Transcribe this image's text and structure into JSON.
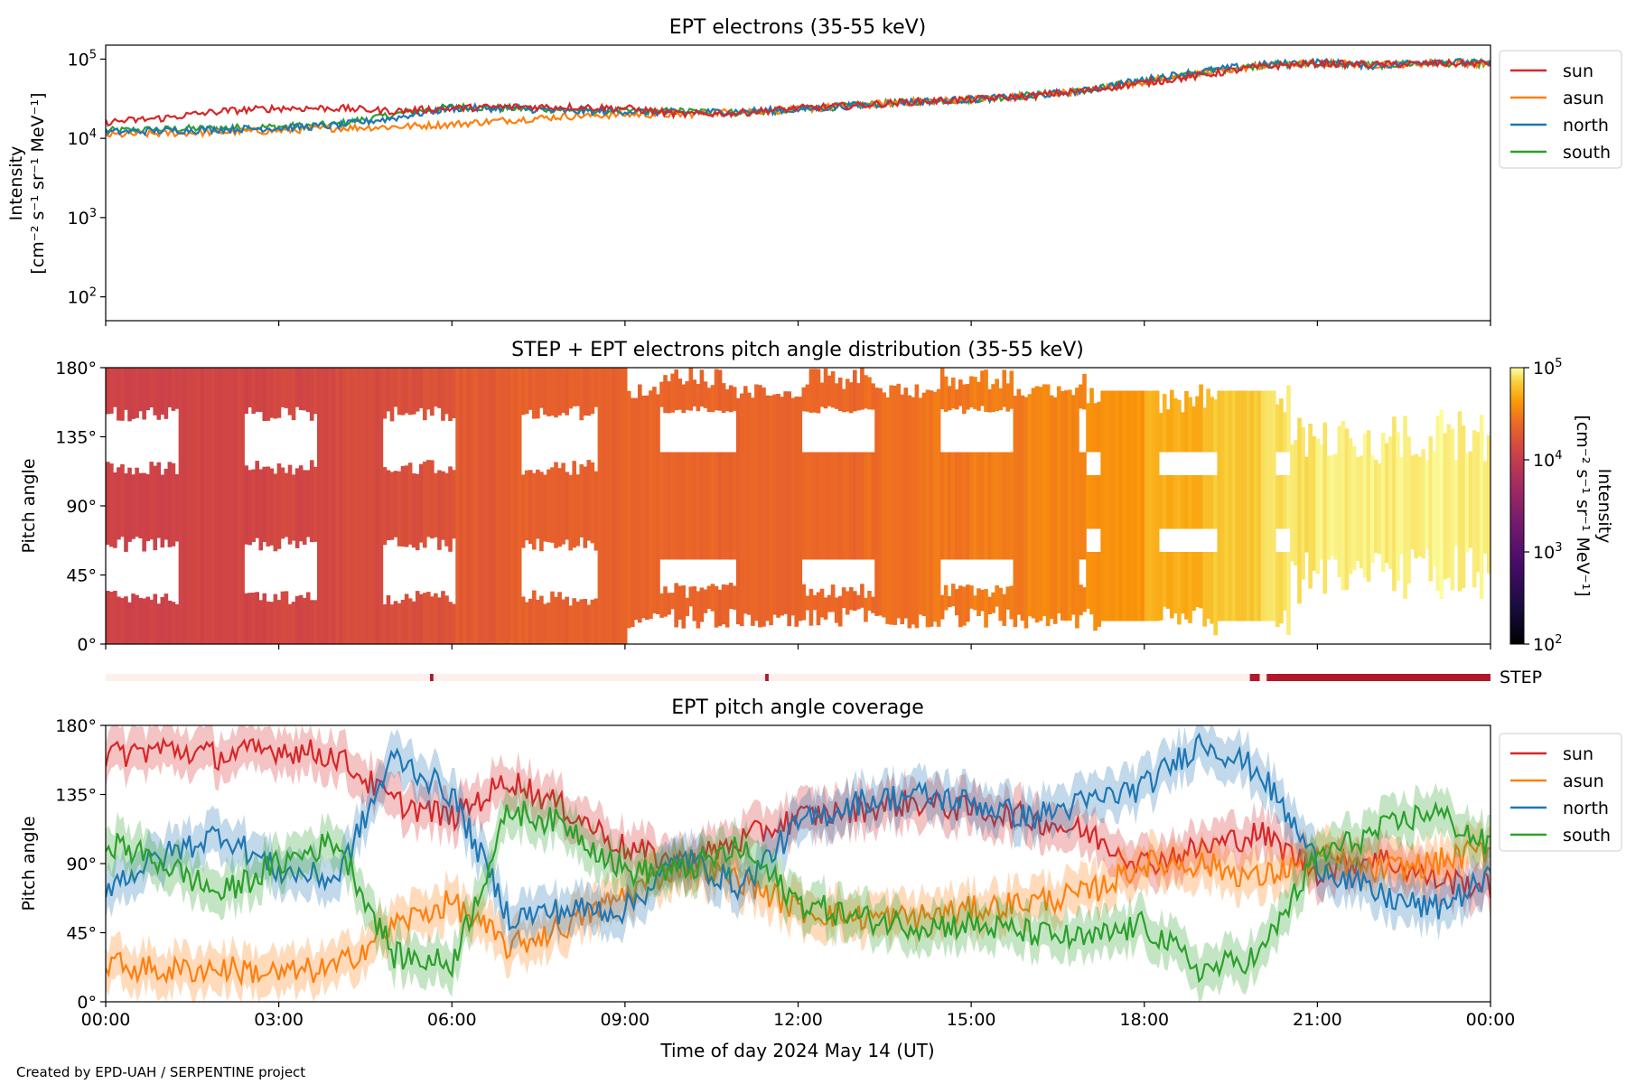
{
  "chart_data": [
    {
      "type": "line",
      "title": "EPT electrons (35-55 keV)",
      "ylabel": "Intensity",
      "ylabel_unit": "[cm⁻² s⁻¹ sr⁻¹ MeV⁻¹]",
      "yscale": "log",
      "ylim": [
        50,
        150000
      ],
      "yticks": [
        100,
        1000,
        10000,
        100000
      ],
      "ytick_labels": [
        [
          "10",
          "2"
        ],
        [
          "10",
          "3"
        ],
        [
          "10",
          "4"
        ],
        [
          "10",
          "5"
        ]
      ],
      "xlim_hours": [
        0,
        24
      ],
      "legend": "outside-right",
      "series": [
        {
          "name": "sun",
          "color": "#d62728",
          "values": [
            [
              0,
              16000
            ],
            [
              1,
              18000
            ],
            [
              2,
              22000
            ],
            [
              3,
              24000
            ],
            [
              4,
              24000
            ],
            [
              5,
              22000
            ],
            [
              6,
              24000
            ],
            [
              7,
              25000
            ],
            [
              8,
              25000
            ],
            [
              9,
              24000
            ],
            [
              10,
              20000
            ],
            [
              11,
              21000
            ],
            [
              12,
              24000
            ],
            [
              13,
              26000
            ],
            [
              14,
              29000
            ],
            [
              15,
              31000
            ],
            [
              16,
              34000
            ],
            [
              17,
              40000
            ],
            [
              18,
              50000
            ],
            [
              19,
              62000
            ],
            [
              20,
              80000
            ],
            [
              21,
              88000
            ],
            [
              22,
              85000
            ],
            [
              23,
              88000
            ],
            [
              24,
              88000
            ]
          ]
        },
        {
          "name": "asun",
          "color": "#ff7f0e",
          "values": [
            [
              0,
              11000
            ],
            [
              1,
              11500
            ],
            [
              2,
              12000
            ],
            [
              3,
              12500
            ],
            [
              4,
              13500
            ],
            [
              5,
              14000
            ],
            [
              6,
              15000
            ],
            [
              7,
              17000
            ],
            [
              8,
              19000
            ],
            [
              9,
              20000
            ],
            [
              10,
              20000
            ],
            [
              11,
              22000
            ],
            [
              12,
              23000
            ],
            [
              13,
              26000
            ],
            [
              14,
              29000
            ],
            [
              15,
              31000
            ],
            [
              16,
              34000
            ],
            [
              17,
              40000
            ],
            [
              18,
              52000
            ],
            [
              19,
              65000
            ],
            [
              20,
              82000
            ],
            [
              21,
              90000
            ],
            [
              22,
              85000
            ],
            [
              23,
              88000
            ],
            [
              24,
              88000
            ]
          ]
        },
        {
          "name": "north",
          "color": "#1f77b4",
          "values": [
            [
              0,
              12000
            ],
            [
              1,
              12500
            ],
            [
              2,
              13000
            ],
            [
              3,
              13500
            ],
            [
              4,
              14500
            ],
            [
              5,
              18000
            ],
            [
              6,
              24000
            ],
            [
              7,
              24000
            ],
            [
              8,
              22000
            ],
            [
              9,
              22000
            ],
            [
              10,
              21000
            ],
            [
              11,
              22000
            ],
            [
              12,
              23000
            ],
            [
              13,
              26000
            ],
            [
              14,
              29000
            ],
            [
              15,
              31000
            ],
            [
              16,
              34000
            ],
            [
              17,
              40000
            ],
            [
              18,
              55000
            ],
            [
              19,
              70000
            ],
            [
              20,
              85000
            ],
            [
              21,
              92000
            ],
            [
              22,
              82000
            ],
            [
              23,
              95000
            ],
            [
              24,
              88000
            ]
          ]
        },
        {
          "name": "south",
          "color": "#2ca02c",
          "values": [
            [
              0,
              12500
            ],
            [
              1,
              13000
            ],
            [
              2,
              13500
            ],
            [
              3,
              14000
            ],
            [
              4,
              15000
            ],
            [
              5,
              20000
            ],
            [
              6,
              25000
            ],
            [
              7,
              24000
            ],
            [
              8,
              23000
            ],
            [
              9,
              22000
            ],
            [
              10,
              22000
            ],
            [
              11,
              21000
            ],
            [
              12,
              23000
            ],
            [
              13,
              26000
            ],
            [
              14,
              29000
            ],
            [
              15,
              31000
            ],
            [
              16,
              35000
            ],
            [
              17,
              40000
            ],
            [
              18,
              53000
            ],
            [
              19,
              68000
            ],
            [
              20,
              84000
            ],
            [
              21,
              88000
            ],
            [
              22,
              84000
            ],
            [
              23,
              90000
            ],
            [
              24,
              88000
            ]
          ]
        }
      ]
    },
    {
      "type": "heatmap",
      "title": "STEP + EPT electrons pitch angle distribution (35-55 keV)",
      "ylabel": "Pitch angle",
      "ylim_deg": [
        0,
        180
      ],
      "yticks_deg": [
        0,
        45,
        90,
        135,
        180
      ],
      "ytick_labels": [
        "0°",
        "45°",
        "90°",
        "135°",
        "180°"
      ],
      "xlim_hours": [
        0,
        24
      ],
      "colorbar": {
        "label": "Intensity",
        "unit": "[cm⁻² s⁻¹ sr⁻¹ MeV⁻¹]",
        "scale": "log",
        "range": [
          100,
          100000
        ],
        "ticks": [
          [
            "10",
            "2"
          ],
          [
            "10",
            "3"
          ],
          [
            "10",
            "4"
          ],
          [
            "10",
            "5"
          ]
        ],
        "colormap": "inferno"
      },
      "intensity_by_hour": [
        12000,
        12500,
        13000,
        13500,
        14500,
        16000,
        19000,
        21000,
        22000,
        23000,
        23000,
        23000,
        24000,
        26000,
        29000,
        31000,
        34000,
        40000,
        52000,
        65000,
        80000,
        88000,
        88000,
        90000
      ]
    },
    {
      "type": "bar",
      "label": "STEP",
      "segments_hours": [
        [
          5.62,
          5.68
        ],
        [
          11.43,
          11.49
        ],
        [
          19.83,
          20.0
        ],
        [
          20.12,
          24.0
        ]
      ],
      "active_color": "#b2182b",
      "inactive_color": "#fdf0ec"
    },
    {
      "type": "line",
      "title": "EPT pitch angle coverage",
      "ylabel": "Pitch angle",
      "xlabel": "Time of day 2024 May 14 (UT)",
      "ylim_deg": [
        0,
        180
      ],
      "yticks_deg": [
        0,
        45,
        90,
        135,
        180
      ],
      "ytick_labels": [
        "0°",
        "45°",
        "90°",
        "135°",
        "180°"
      ],
      "xticks_hours": [
        0,
        3,
        6,
        9,
        12,
        15,
        18,
        21,
        24
      ],
      "xtick_labels": [
        "00:00",
        "03:00",
        "06:00",
        "09:00",
        "12:00",
        "15:00",
        "18:00",
        "21:00",
        "00:00"
      ],
      "legend": "outside-right",
      "series": [
        {
          "name": "sun",
          "color": "#d62728",
          "values": [
            [
              0,
              160
            ],
            [
              1,
              165
            ],
            [
              2,
              160
            ],
            [
              3,
              165
            ],
            [
              4,
              160
            ],
            [
              5,
              130
            ],
            [
              6,
              120
            ],
            [
              7,
              145
            ],
            [
              8,
              125
            ],
            [
              9,
              100
            ],
            [
              10,
              90
            ],
            [
              11,
              105
            ],
            [
              12,
              120
            ],
            [
              13,
              125
            ],
            [
              14,
              130
            ],
            [
              15,
              125
            ],
            [
              16,
              120
            ],
            [
              17,
              110
            ],
            [
              18,
              90
            ],
            [
              19,
              100
            ],
            [
              20,
              110
            ],
            [
              21,
              85
            ],
            [
              22,
              95
            ],
            [
              23,
              80
            ],
            [
              24,
              75
            ]
          ]
        },
        {
          "name": "asun",
          "color": "#ff7f0e",
          "values": [
            [
              0,
              25
            ],
            [
              1,
              20
            ],
            [
              2,
              22
            ],
            [
              3,
              18
            ],
            [
              4,
              22
            ],
            [
              5,
              50
            ],
            [
              6,
              65
            ],
            [
              7,
              35
            ],
            [
              8,
              50
            ],
            [
              9,
              70
            ],
            [
              10,
              90
            ],
            [
              11,
              80
            ],
            [
              12,
              60
            ],
            [
              13,
              55
            ],
            [
              14,
              55
            ],
            [
              15,
              60
            ],
            [
              16,
              65
            ],
            [
              17,
              70
            ],
            [
              18,
              90
            ],
            [
              19,
              90
            ],
            [
              20,
              80
            ],
            [
              21,
              95
            ],
            [
              22,
              85
            ],
            [
              23,
              90
            ],
            [
              24,
              100
            ]
          ]
        },
        {
          "name": "north",
          "color": "#1f77b4",
          "values": [
            [
              0,
              75
            ],
            [
              1,
              95
            ],
            [
              2,
              110
            ],
            [
              3,
              85
            ],
            [
              4,
              80
            ],
            [
              5,
              160
            ],
            [
              6,
              135
            ],
            [
              7,
              55
            ],
            [
              8,
              60
            ],
            [
              9,
              60
            ],
            [
              10,
              95
            ],
            [
              11,
              75
            ],
            [
              12,
              115
            ],
            [
              13,
              130
            ],
            [
              14,
              135
            ],
            [
              15,
              130
            ],
            [
              16,
              120
            ],
            [
              17,
              130
            ],
            [
              18,
              140
            ],
            [
              19,
              170
            ],
            [
              20,
              150
            ],
            [
              21,
              90
            ],
            [
              22,
              70
            ],
            [
              23,
              60
            ],
            [
              24,
              80
            ]
          ]
        },
        {
          "name": "south",
          "color": "#2ca02c",
          "values": [
            [
              0,
              105
            ],
            [
              1,
              90
            ],
            [
              2,
              70
            ],
            [
              3,
              90
            ],
            [
              4,
              105
            ],
            [
              5,
              30
            ],
            [
              6,
              25
            ],
            [
              7,
              125
            ],
            [
              8,
              115
            ],
            [
              9,
              85
            ],
            [
              10,
              85
            ],
            [
              11,
              100
            ],
            [
              12,
              65
            ],
            [
              13,
              55
            ],
            [
              14,
              50
            ],
            [
              15,
              50
            ],
            [
              16,
              45
            ],
            [
              17,
              40
            ],
            [
              18,
              50
            ],
            [
              19,
              20
            ],
            [
              20,
              30
            ],
            [
              21,
              95
            ],
            [
              22,
              110
            ],
            [
              23,
              125
            ],
            [
              24,
              100
            ]
          ]
        }
      ]
    }
  ],
  "footer_text": "Created by EPD-UAH / SERPENTINE project"
}
